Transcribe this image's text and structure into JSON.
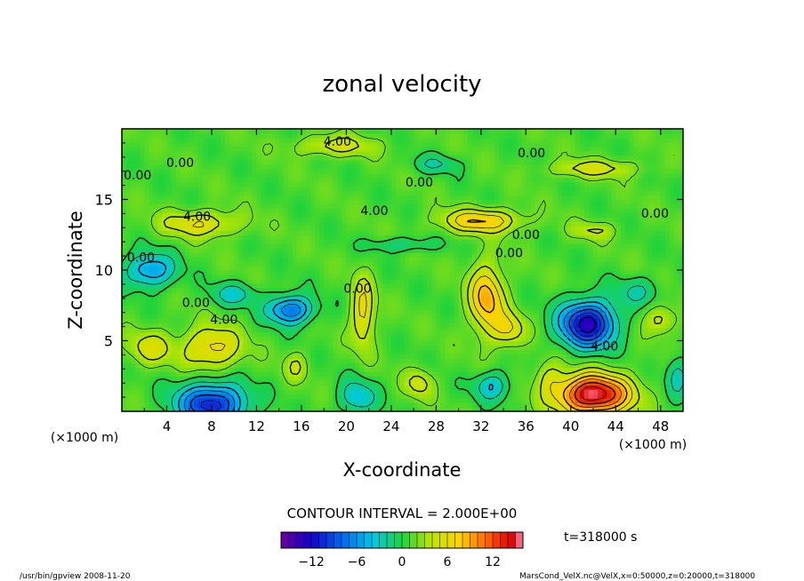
{
  "chart_data": {
    "type": "heatmap",
    "title": "zonal velocity",
    "xlabel": "X-coordinate",
    "ylabel": "Z-coordinate",
    "x_unit": "(×1000 m)",
    "x_range": [
      0,
      50
    ],
    "y_range": [
      0,
      20
    ],
    "x_ticks": [
      4,
      8,
      12,
      16,
      20,
      24,
      28,
      32,
      36,
      40,
      44,
      48
    ],
    "y_ticks": [
      5,
      10,
      15
    ],
    "contour_interval_text": "CONTOUR INTERVAL = 2.000E+00",
    "time_text": "t=318000 s",
    "colorbar": {
      "range": [
        -16,
        16
      ],
      "ticks": [
        -12,
        -6,
        0,
        6,
        12
      ]
    },
    "contour_labels": [
      {
        "text": "4.00",
        "x": 19.2,
        "y": 18.8
      },
      {
        "text": "0.00",
        "x": 5.2,
        "y": 17.3
      },
      {
        "text": "0.00",
        "x": 1.4,
        "y": 16.4
      },
      {
        "text": "0.00",
        "x": 36.5,
        "y": 18.0
      },
      {
        "text": "0.00",
        "x": 26.5,
        "y": 15.9
      },
      {
        "text": "4.00",
        "x": 6.7,
        "y": 13.5
      },
      {
        "text": "4.00",
        "x": 22.5,
        "y": 13.9
      },
      {
        "text": "0.00",
        "x": 47.5,
        "y": 13.7
      },
      {
        "text": "0.00",
        "x": 36.0,
        "y": 12.2
      },
      {
        "text": "0.00",
        "x": 34.5,
        "y": 10.9
      },
      {
        "text": "0.00",
        "x": 1.7,
        "y": 10.6
      },
      {
        "text": "0.00",
        "x": 21.0,
        "y": 8.4
      },
      {
        "text": "0.00",
        "x": 6.6,
        "y": 7.4
      },
      {
        "text": "4.00",
        "x": 9.1,
        "y": 6.2
      },
      {
        "text": "4.00",
        "x": 43.0,
        "y": 4.3
      }
    ],
    "field_features": [
      {
        "x": 42,
        "y": 1.2,
        "sx": 3.2,
        "sy": 1.4,
        "a": 15
      },
      {
        "x": 41.5,
        "y": 6.2,
        "sx": 2.4,
        "sy": 1.6,
        "a": -14
      },
      {
        "x": 8,
        "y": 0.5,
        "sx": 3.0,
        "sy": 1.5,
        "a": -12
      },
      {
        "x": 15,
        "y": 7.2,
        "sx": 2.0,
        "sy": 1.0,
        "a": -9
      },
      {
        "x": 2.5,
        "y": 10.0,
        "sx": 2.2,
        "sy": 1.2,
        "a": -7
      },
      {
        "x": 21,
        "y": 1.0,
        "sx": 1.6,
        "sy": 1.2,
        "a": -5
      },
      {
        "x": 33,
        "y": 1.8,
        "sx": 1.6,
        "sy": 1.0,
        "a": -5
      },
      {
        "x": 49.5,
        "y": 2.5,
        "sx": 1.0,
        "sy": 1.4,
        "a": -4
      },
      {
        "x": 8,
        "y": 4.5,
        "sx": 2.6,
        "sy": 1.5,
        "a": 6
      },
      {
        "x": 2.5,
        "y": 4.5,
        "sx": 2.0,
        "sy": 1.2,
        "a": 4
      },
      {
        "x": 32.5,
        "y": 8.0,
        "sx": 1.5,
        "sy": 2.4,
        "a": 8
      },
      {
        "x": 34.5,
        "y": 5.8,
        "sx": 1.4,
        "sy": 1.2,
        "a": 5
      },
      {
        "x": 21.5,
        "y": 7.0,
        "sx": 1.0,
        "sy": 2.4,
        "a": 6
      },
      {
        "x": 32,
        "y": 13.5,
        "sx": 3.5,
        "sy": 0.8,
        "a": 7
      },
      {
        "x": 7,
        "y": 13.3,
        "sx": 3.5,
        "sy": 0.9,
        "a": 5
      },
      {
        "x": 19,
        "y": 18.8,
        "sx": 3.5,
        "sy": 0.7,
        "a": 4
      },
      {
        "x": 42,
        "y": 17.2,
        "sx": 4.0,
        "sy": 0.6,
        "a": 4
      },
      {
        "x": 28,
        "y": 17.5,
        "sx": 2.0,
        "sy": 0.6,
        "a": -3
      },
      {
        "x": 25,
        "y": 11.8,
        "sx": 3.0,
        "sy": 0.5,
        "a": -3
      },
      {
        "x": 10,
        "y": 8.3,
        "sx": 2.0,
        "sy": 0.8,
        "a": -4
      },
      {
        "x": 46,
        "y": 8.5,
        "sx": 2.0,
        "sy": 1.0,
        "a": -3
      },
      {
        "x": 42,
        "y": 12.8,
        "sx": 2.0,
        "sy": 0.6,
        "a": 3
      },
      {
        "x": 48,
        "y": 6.5,
        "sx": 1.4,
        "sy": 1.0,
        "a": 4
      },
      {
        "x": 26.5,
        "y": 2.0,
        "sx": 1.2,
        "sy": 1.0,
        "a": 4
      },
      {
        "x": 15.5,
        "y": 3.2,
        "sx": 1.0,
        "sy": 1.0,
        "a": 3
      },
      {
        "x": 38,
        "y": 2.5,
        "sx": 1.2,
        "sy": 1.2,
        "a": 3
      }
    ]
  },
  "footer": {
    "left": "/usr/bin/gpview  2008-11-20",
    "right": "MarsCond_VelX.nc@VelX,x=0:50000,z=0:20000,t=318000"
  }
}
